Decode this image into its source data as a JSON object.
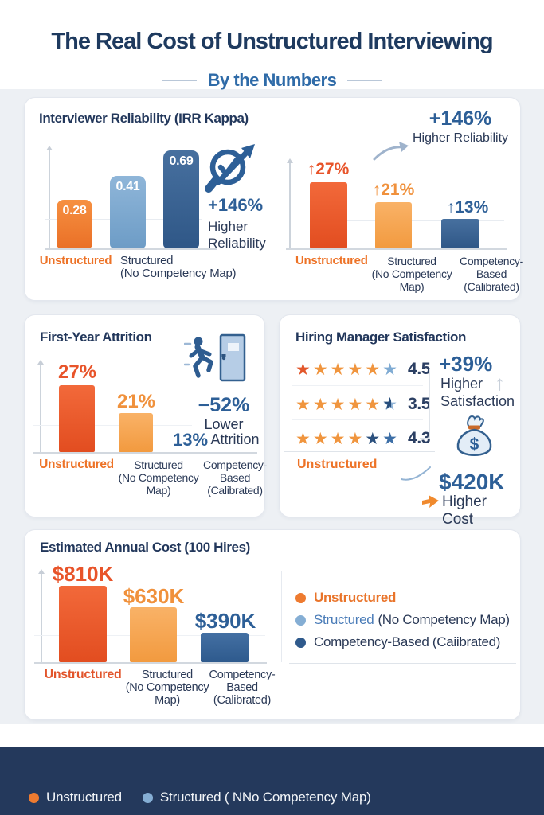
{
  "header": {
    "title": "The Real Cost of Unstructured Interviewing",
    "subtitle": "By the Numbers"
  },
  "reliability": {
    "title": "Interviewer Reliability (IRR Kappa)",
    "bar_labels": [
      "0.28",
      "0.41",
      "0.69"
    ],
    "cats_left": [
      {
        "label": "Unstructured"
      },
      {
        "label": "Structured",
        "sub": "(No Competency Map)"
      }
    ],
    "badge": {
      "percent": "+146%",
      "line1": "Higher",
      "line2": "Reliability"
    },
    "anno": {
      "percent": "+146%",
      "text": "Higher Reliability"
    },
    "rate_labels": [
      "↑27%",
      "↑21%",
      "↑13%"
    ],
    "cats": [
      {
        "label": "Unstructured",
        "sub": ""
      },
      {
        "label": "Structured",
        "sub": "(No Competency Map)"
      },
      {
        "label": "Competency-Based",
        "sub": "(Calibrated)"
      }
    ]
  },
  "attrition": {
    "title": "First-Year Attrition",
    "bar_labels": [
      "27%",
      "21%"
    ],
    "third_label": "13%",
    "anno": {
      "percent": "−52%",
      "line1": "Lower",
      "line2": "Attrition"
    },
    "cats": [
      {
        "label": "Unstructured",
        "sub": ""
      },
      {
        "label": "Structured",
        "sub": "(No Competency Map)"
      },
      {
        "label": "Competency-Based",
        "sub": "(Calibrated)"
      }
    ]
  },
  "satisfaction": {
    "title": "Hiring Manager Satisfaction",
    "rows": [
      {
        "score": "4.5",
        "stars": [
          "red",
          "orange",
          "orange",
          "orange",
          "orange",
          "lightblue"
        ]
      },
      {
        "score": "3.5",
        "stars": [
          "orange",
          "orange",
          "orange",
          "orange",
          "orange",
          "half"
        ]
      },
      {
        "score": "4.3",
        "stars": [
          "orange",
          "orange",
          "orange",
          "orange",
          "navy",
          "blue"
        ]
      }
    ],
    "x_label": "Unstructured",
    "anno": {
      "percent": "+39%",
      "line1": "Higher",
      "line2": "Satisfaction"
    },
    "cost": {
      "value": "$420K",
      "label": "Higher Cost"
    }
  },
  "cost_panel": {
    "title": "Estimated Annual Cost (100 Hires)",
    "bar_labels": [
      "$810K",
      "$630K",
      "$390K"
    ],
    "cats": [
      {
        "label": "Unstructured",
        "sub": ""
      },
      {
        "label": "Structured",
        "sub": "(No Competency Map)"
      },
      {
        "label": "Competency-Based",
        "sub": "(Calibrated)"
      }
    ],
    "legend": [
      {
        "label": "Unstructured"
      },
      {
        "label": "Structured",
        "sub": "(No Competency Map)"
      },
      {
        "label": "Competency-Based (Caiibrated)"
      }
    ]
  },
  "footer": {
    "items": [
      {
        "label": "Unstructured"
      },
      {
        "label": "Structured ( NNo Competency Map)"
      }
    ]
  },
  "colors": {
    "accent_blue": "#2d5f97",
    "navy_text": "#22375b",
    "orange": "#ee7b30",
    "red_orange": "#e8542a",
    "light_orange": "#f5a44f",
    "light_blue": "#7ba6cc",
    "dark_blue_bar": "#35608f",
    "footer_bg": "#24395c"
  },
  "chart_data": [
    {
      "id": "interviewer_reliability_irr_kappa",
      "type": "bar",
      "title": "Interviewer Reliability (IRR Kappa)",
      "categories": [
        "Unstructured",
        "Structured (No Competency Map)",
        "Competency-Based (Calibrated)"
      ],
      "values": [
        0.28,
        0.41,
        0.69
      ],
      "value_labels": [
        "0.28",
        "0.41",
        "0.69"
      ],
      "bar_colors": [
        "#ee7b30",
        "#7ba6cc",
        "#35608f"
      ],
      "annotation": "+146% Higher Reliability",
      "ylim": [
        0,
        0.8
      ]
    },
    {
      "id": "reliability_panel_right_percentages",
      "type": "bar",
      "title": "",
      "categories": [
        "Unstructured",
        "Structured (No Competency Map)",
        "Competency-Based (Calibrated)"
      ],
      "values": [
        27,
        21,
        13
      ],
      "value_labels": [
        "↑27%",
        "↑21%",
        "↑13%"
      ],
      "bar_colors": [
        "#ec5f2d",
        "#f5a44f",
        "#35608f"
      ],
      "annotation": "+146% Higher Reliability",
      "unit": "%"
    },
    {
      "id": "first_year_attrition",
      "type": "bar",
      "title": "First-Year Attrition",
      "categories": [
        "Unstructured",
        "Structured (No Competency Map)",
        "Competency-Based (Calibrated)"
      ],
      "values": [
        27,
        21,
        13
      ],
      "value_labels": [
        "27%",
        "21%",
        "13%"
      ],
      "bar_colors": [
        "#e8542a",
        "#f5a44f",
        null
      ],
      "annotation": "−52% Lower Attrition",
      "unit": "%"
    },
    {
      "id": "hiring_manager_satisfaction",
      "type": "rating",
      "title": "Hiring Manager Satisfaction",
      "rows": [
        {
          "value": 4.5,
          "stars_total": 6,
          "stars_orange": 5,
          "stars_blue": 1
        },
        {
          "value": 3.5,
          "stars_total": 6,
          "stars_orange": 5,
          "stars_blue": 1
        },
        {
          "value": 4.3,
          "stars_total": 6,
          "stars_orange": 4,
          "stars_blue": 2
        }
      ],
      "x_label": "Unstructured",
      "annotations": [
        "+39% Higher Satisfaction",
        "$420K Higher Cost"
      ]
    },
    {
      "id": "estimated_annual_cost_100_hires",
      "type": "bar",
      "title": "Estimated Annual Cost (100 Hires)",
      "categories": [
        "Unstructured",
        "Structured (No Competency Map)",
        "Competency-Based (Calibrated)"
      ],
      "values": [
        810,
        630,
        390
      ],
      "value_labels": [
        "$810K",
        "$630K",
        "$390K"
      ],
      "unit": "$K",
      "bar_colors": [
        "#e8542a",
        "#f5a44f",
        "#35608f"
      ],
      "legend": [
        "Unstructured",
        "Structured (No Competency Map)",
        "Competency-Based (Caiibrated)"
      ]
    }
  ]
}
